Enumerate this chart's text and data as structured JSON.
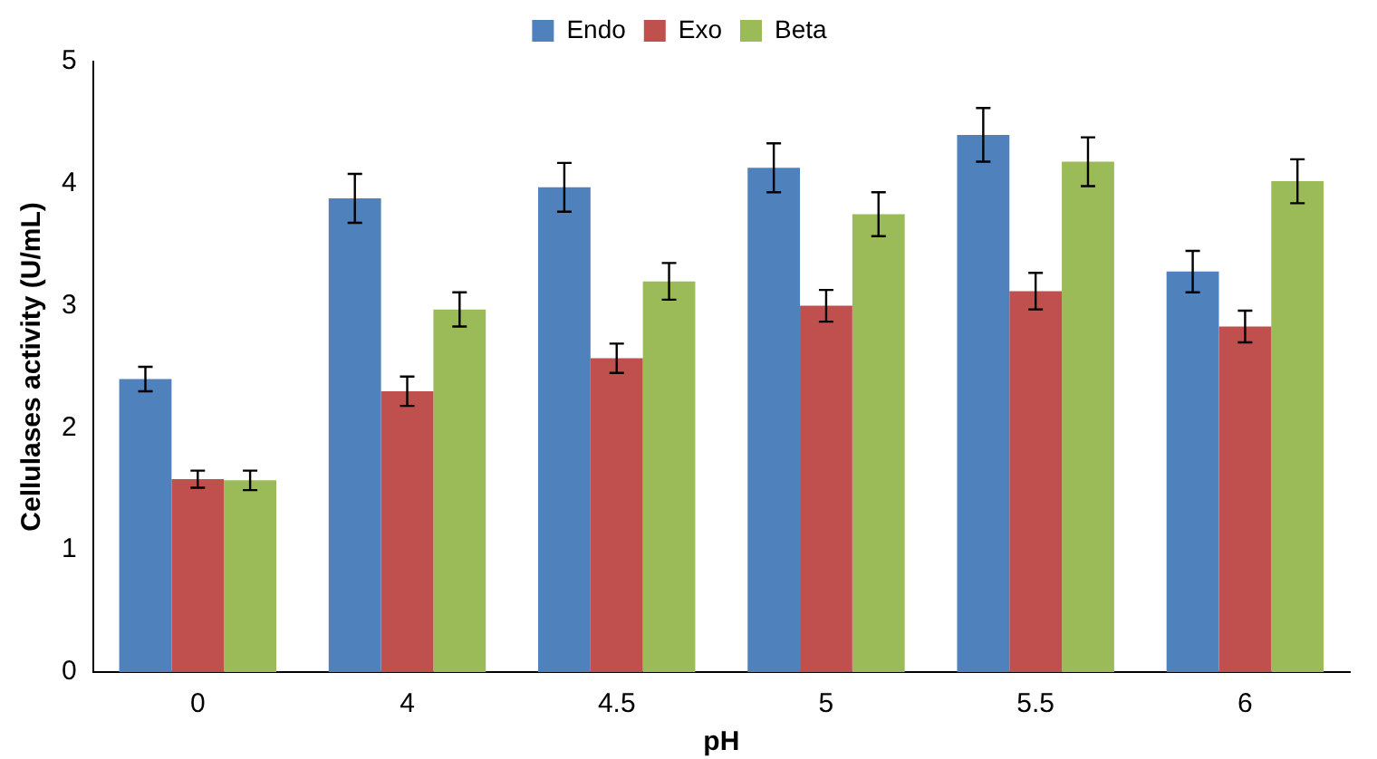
{
  "chart_data": {
    "type": "bar",
    "xlabel": "pH",
    "ylabel": "Cellulases activity (U/mL)",
    "categories": [
      "0",
      "4",
      "4.5",
      "5",
      "5.5",
      "6"
    ],
    "series": [
      {
        "name": "Endo",
        "color": "#4f81bd",
        "values": [
          2.4,
          3.88,
          3.97,
          4.13,
          4.4,
          3.28
        ],
        "errors": [
          0.1,
          0.2,
          0.2,
          0.2,
          0.22,
          0.17
        ]
      },
      {
        "name": "Exo",
        "color": "#c0504d",
        "values": [
          1.58,
          2.3,
          2.57,
          3.0,
          3.12,
          2.83
        ],
        "errors": [
          0.07,
          0.12,
          0.12,
          0.13,
          0.15,
          0.13
        ]
      },
      {
        "name": "Beta",
        "color": "#9bbb59",
        "values": [
          1.57,
          2.97,
          3.2,
          3.75,
          4.18,
          4.02
        ],
        "errors": [
          0.08,
          0.14,
          0.15,
          0.18,
          0.2,
          0.18
        ]
      }
    ],
    "ylim": [
      0,
      5
    ],
    "yticks": [
      0,
      1,
      2,
      3,
      4,
      5
    ],
    "legend": "top"
  }
}
